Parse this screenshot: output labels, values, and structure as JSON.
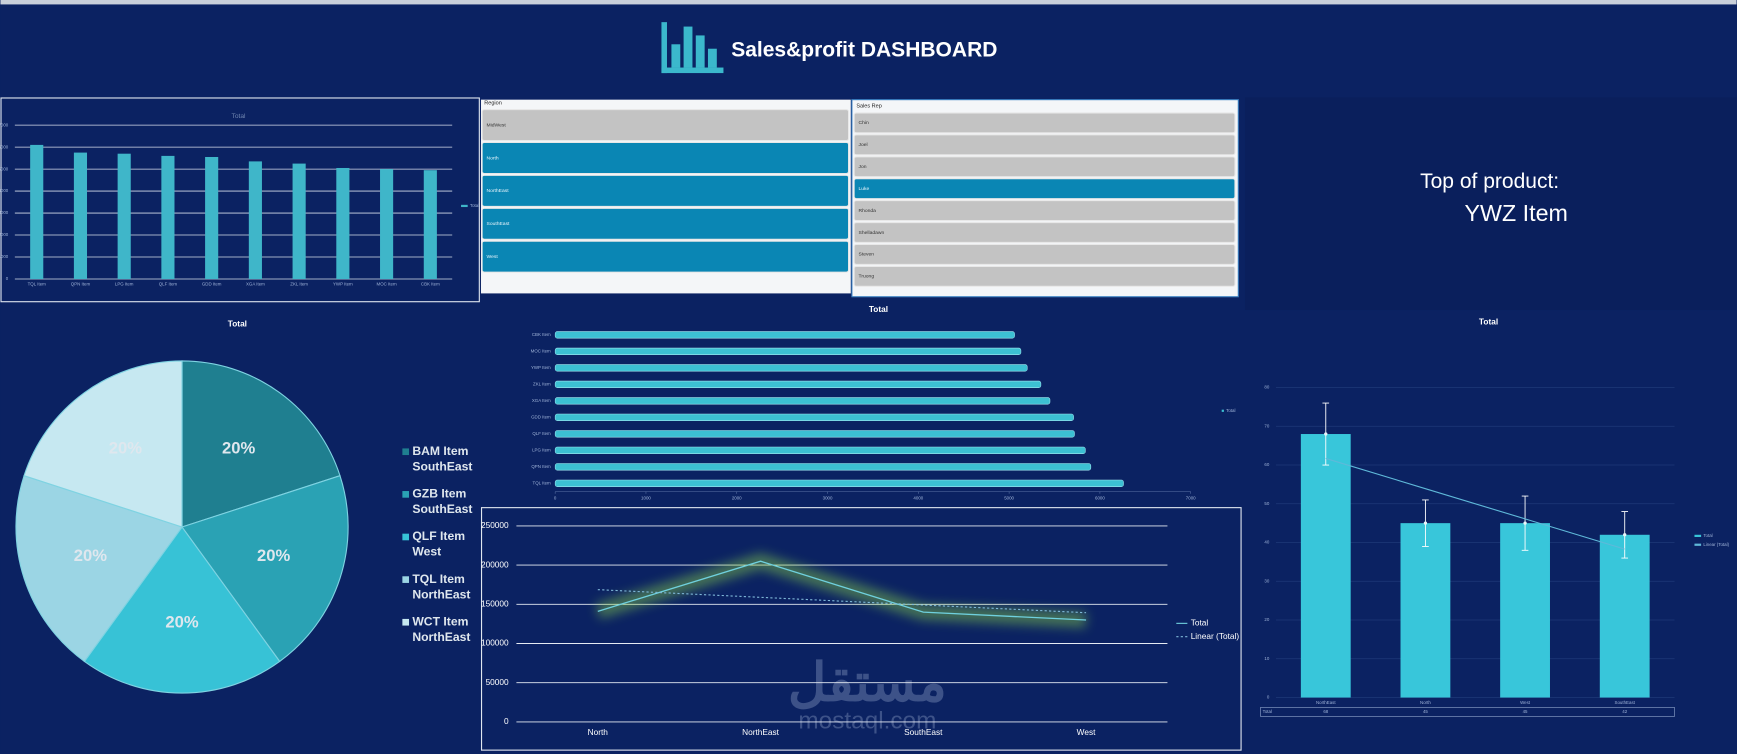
{
  "header": {
    "title": "Sales&profit DASHBOARD"
  },
  "top_product": {
    "label": "Top of product:",
    "value": "YWZ Item"
  },
  "region_slicer": {
    "title": "Region",
    "items": [
      "MidWest",
      "North",
      "NorthEast",
      "SouthEast",
      "West"
    ],
    "selected": [
      false,
      true,
      true,
      true,
      true
    ]
  },
  "rep_slicer": {
    "title": "Sales Rep",
    "items": [
      "Chin",
      "Joel",
      "Jon",
      "Luke",
      "Rhonda",
      "Shelladawn",
      "Steven",
      "Truong"
    ],
    "selected": [
      false,
      false,
      false,
      true,
      false,
      false,
      false,
      false
    ]
  },
  "watermark": {
    "arabic": "مستقل",
    "latin": "mostaql.com"
  },
  "chart_data": [
    {
      "type": "bar",
      "orientation": "vertical",
      "title": "Total",
      "categories": [
        "TQL Item",
        "QPN Item",
        "LPG Item",
        "QLF Item",
        "GDD Item",
        "XGA Item",
        "ZKL Item",
        "YWP Item",
        "MOC Item",
        "CBK Item"
      ],
      "series": [
        {
          "name": "Total",
          "color": "#3fb6c9",
          "values": [
            6100,
            5750,
            5700,
            5600,
            5550,
            5350,
            5250,
            5050,
            5000,
            4950
          ]
        }
      ],
      "ylim": [
        0,
        7000
      ],
      "yticks": [
        0,
        1000,
        2000,
        3000,
        4000,
        5000,
        6000,
        7000
      ],
      "grid": true,
      "legend": "right"
    },
    {
      "type": "bar",
      "orientation": "horizontal",
      "title": "Total",
      "categories": [
        "CBK Item",
        "MOC Item",
        "YWP Item",
        "ZKL Item",
        "XGA Item",
        "GDD Item",
        "QLF Item",
        "LPG Item",
        "QPN Item",
        "TQL Item"
      ],
      "series": [
        {
          "name": "Total",
          "color": "#3cc0d3",
          "values": [
            5060,
            5130,
            5200,
            5350,
            5450,
            5710,
            5720,
            5840,
            5900,
            6260
          ]
        }
      ],
      "xlim": [
        0,
        7000
      ],
      "xticks": [
        0,
        1000,
        2000,
        3000,
        4000,
        5000,
        6000,
        7000
      ],
      "grid": false,
      "legend": "right"
    },
    {
      "type": "pie",
      "title": "Total",
      "categories": [
        "BAM Item",
        "GZB Item",
        "QLF Item",
        "TQL Item",
        "WCT Item"
      ],
      "regions": [
        "SouthEast",
        "SouthEast",
        "West",
        "NorthEast",
        "NorthEast"
      ],
      "values": [
        20,
        20,
        20,
        20,
        20
      ],
      "value_labels": [
        "20%",
        "20%",
        "20%",
        "20%",
        "20%"
      ],
      "colors": [
        "#1f7f90",
        "#2aa2b4",
        "#37c2d6",
        "#9bd5e4",
        "#c6e8f1"
      ],
      "legend": "right"
    },
    {
      "type": "line",
      "categories": [
        "North",
        "NorthEast",
        "SouthEast",
        "West"
      ],
      "series": [
        {
          "name": "Total",
          "color": "#6fd0de",
          "values": [
            141000,
            205000,
            140000,
            130000
          ]
        },
        {
          "name": "Linear (Total)",
          "color": "#7fb8d8",
          "dashed": true,
          "values": [
            168700,
            158900,
            149100,
            139300
          ]
        }
      ],
      "ylim": [
        0,
        250000
      ],
      "yticks": [
        0,
        50000,
        100000,
        150000,
        200000,
        250000
      ],
      "grid": true,
      "legend": "right"
    },
    {
      "type": "bar",
      "orientation": "vertical",
      "title": "Total",
      "categories": [
        "NorthEast",
        "North",
        "West",
        "SouthEast"
      ],
      "series": [
        {
          "name": "Total",
          "color": "#38c6da",
          "values": [
            68,
            45,
            45,
            42
          ],
          "errors": [
            8,
            6,
            7,
            6
          ]
        },
        {
          "name": "Linear (Total)",
          "color": "#5fb9d9",
          "trend": true,
          "values": [
            61.7,
            53.9,
            46.1,
            38.3
          ]
        }
      ],
      "ylim": [
        0,
        80
      ],
      "yticks": [
        0,
        10,
        20,
        30,
        40,
        50,
        60,
        70,
        80
      ],
      "grid": true,
      "legend": "right",
      "table": true
    }
  ]
}
